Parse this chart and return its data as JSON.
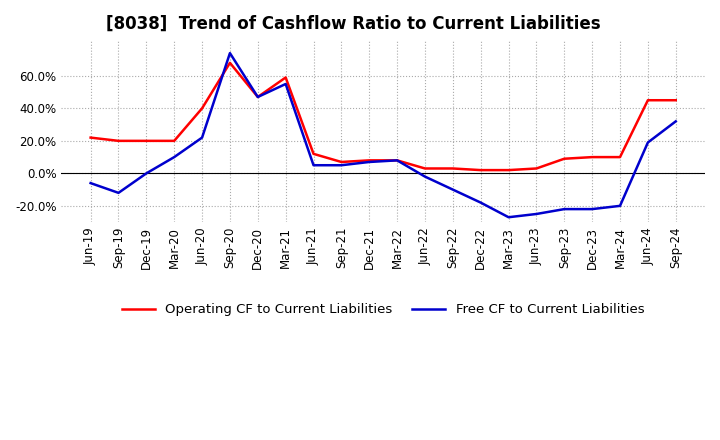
{
  "title": "[8038]  Trend of Cashflow Ratio to Current Liabilities",
  "x_labels": [
    "Jun-19",
    "Sep-19",
    "Dec-19",
    "Mar-20",
    "Jun-20",
    "Sep-20",
    "Dec-20",
    "Mar-21",
    "Jun-21",
    "Sep-21",
    "Dec-21",
    "Mar-22",
    "Jun-22",
    "Sep-22",
    "Dec-22",
    "Mar-23",
    "Jun-23",
    "Sep-23",
    "Dec-23",
    "Mar-24",
    "Jun-24",
    "Sep-24"
  ],
  "operating_cf": [
    0.22,
    0.2,
    0.2,
    0.2,
    0.4,
    0.68,
    0.47,
    0.59,
    0.12,
    0.07,
    0.08,
    0.08,
    0.03,
    0.03,
    0.02,
    0.02,
    0.03,
    0.09,
    0.1,
    0.1,
    0.45,
    0.45
  ],
  "free_cf": [
    -0.06,
    -0.12,
    0.0,
    0.1,
    0.22,
    0.74,
    0.47,
    0.55,
    0.05,
    0.05,
    0.07,
    0.08,
    -0.02,
    -0.1,
    -0.18,
    -0.27,
    -0.25,
    -0.22,
    -0.22,
    -0.2,
    0.19,
    0.32
  ],
  "operating_color": "#ff0000",
  "free_color": "#0000cd",
  "ylim": [
    -0.3,
    0.82
  ],
  "yticks": [
    -0.2,
    0.0,
    0.2,
    0.4,
    0.6
  ],
  "grid_color": "#aaaaaa",
  "grid_style": "dotted",
  "background_color": "#ffffff",
  "legend_operating": "Operating CF to Current Liabilities",
  "legend_free": "Free CF to Current Liabilities",
  "title_fontsize": 12,
  "axis_fontsize": 8.5,
  "legend_fontsize": 9.5
}
